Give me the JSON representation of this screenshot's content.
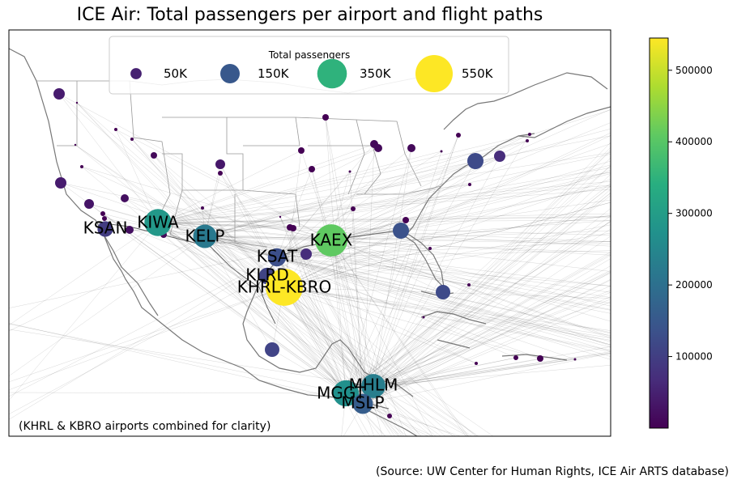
{
  "title": "ICE Air: Total passengers per airport and flight paths",
  "footnote": "(KHRL & KBRO airports combined for clarity)",
  "source": "(Source: UW Center for Human Rights, ICE Air ARTS database)",
  "legend": {
    "title": "Total passengers",
    "entries": [
      {
        "label": "50K",
        "value": 50000
      },
      {
        "label": "150K",
        "value": 150000
      },
      {
        "label": "350K",
        "value": 350000
      },
      {
        "label": "550K",
        "value": 550000
      }
    ]
  },
  "colorbar": {
    "min": 0,
    "max": 545000,
    "ticks": [
      {
        "label": "100000",
        "value": 100000
      },
      {
        "label": "200000",
        "value": 200000
      },
      {
        "label": "300000",
        "value": 300000
      },
      {
        "label": "400000",
        "value": 400000
      },
      {
        "label": "500000",
        "value": 500000
      }
    ]
  },
  "labeled_airports": [
    {
      "code": "KSAN",
      "passengers": 95000
    },
    {
      "code": "KIWA",
      "passengers": 290000
    },
    {
      "code": "KELP",
      "passengers": 220000
    },
    {
      "code": "KAEX",
      "passengers": 410000
    },
    {
      "code": "KSAT",
      "passengers": 130000
    },
    {
      "code": "KLRD",
      "passengers": 110000
    },
    {
      "code": "KHRL-KBRO",
      "passengers": 545000
    },
    {
      "code": "MHLM",
      "passengers": 230000
    },
    {
      "code": "MGGT",
      "passengers": 270000
    },
    {
      "code": "MSLP",
      "passengers": 160000
    }
  ]
}
